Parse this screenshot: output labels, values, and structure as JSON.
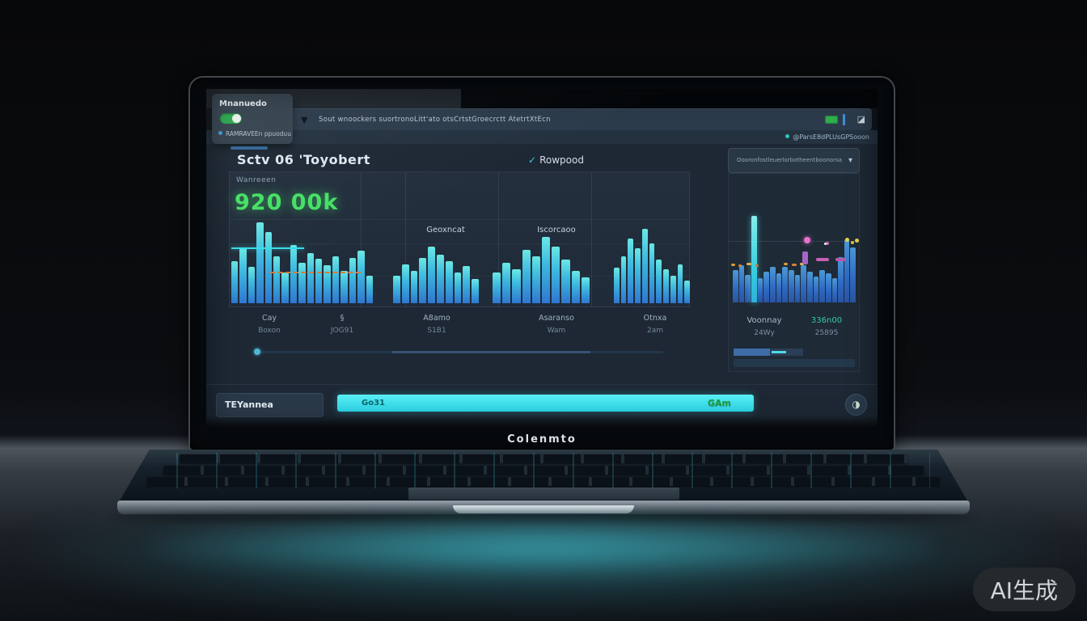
{
  "watermark": "AI生成",
  "laptop": {
    "brand": "Colenmto"
  },
  "icons": {
    "funnel": "▼",
    "caret_down": "▾",
    "check_swoosh": "✓",
    "window": "◪",
    "circle_action": "◑"
  },
  "topbar": {
    "search_text": "Sout wnoockers suortronoLitt'ato otsCrtstGroecrctt AtetrtXtEcn",
    "status_right": "@ParsE8dPLUsGPSooon"
  },
  "overlay_card": {
    "title": "Mnanuedo",
    "status": "RAMRAVEEn ppuoduu"
  },
  "header": {
    "title": "Sctv 06 'Toyobert",
    "link_label": "Rowpood",
    "dropdown_value": "Oooronfostleuerlorbotheentboonorsa"
  },
  "chart_data": [
    {
      "type": "bar",
      "title": "main dashboard bar chart",
      "kpi_label": "Wanreeen",
      "kpi_value": "920 00k",
      "section_labels": [
        "Geoxncat",
        "Iscorcaoo"
      ],
      "groups": [
        [
          52,
          68,
          45,
          100,
          88,
          58,
          38,
          72,
          50,
          62,
          55,
          47,
          58,
          40,
          56,
          65,
          34
        ],
        [
          34,
          48,
          40,
          56,
          70,
          60,
          52,
          38,
          46,
          30
        ],
        [
          38,
          50,
          42,
          66,
          58,
          82,
          70,
          54,
          40,
          32
        ],
        [
          44,
          58,
          80,
          68,
          92,
          74,
          54,
          42,
          34,
          48,
          28
        ]
      ],
      "ylim": [
        0,
        110
      ],
      "grid": true,
      "axis_labels": [
        {
          "top": "Cay",
          "bottom": "Boxon"
        },
        {
          "top": "§",
          "bottom": "JOG91"
        },
        {
          "top": "A8amo",
          "bottom": "S1B1"
        },
        {
          "top": "Asaranso",
          "bottom": "Wam"
        },
        {
          "top": "Otnxa",
          "bottom": "2am"
        }
      ]
    },
    {
      "type": "bar",
      "title": "right panel bar chart",
      "values": [
        40,
        46,
        34,
        107,
        30,
        38,
        44,
        36,
        44,
        40,
        34,
        46,
        38,
        32,
        40,
        36,
        30,
        56,
        78,
        68
      ],
      "highlight_index": 3,
      "ylim": [
        0,
        110
      ],
      "labels": [
        {
          "top": "Voonnay",
          "bottom": "24Wy"
        },
        {
          "top": "336n00",
          "bottom": "25895"
        }
      ]
    }
  ],
  "bottom_bar": {
    "left_button": "TEYannea",
    "progress_label_left": "Go31",
    "progress_label_right": "GAm"
  }
}
